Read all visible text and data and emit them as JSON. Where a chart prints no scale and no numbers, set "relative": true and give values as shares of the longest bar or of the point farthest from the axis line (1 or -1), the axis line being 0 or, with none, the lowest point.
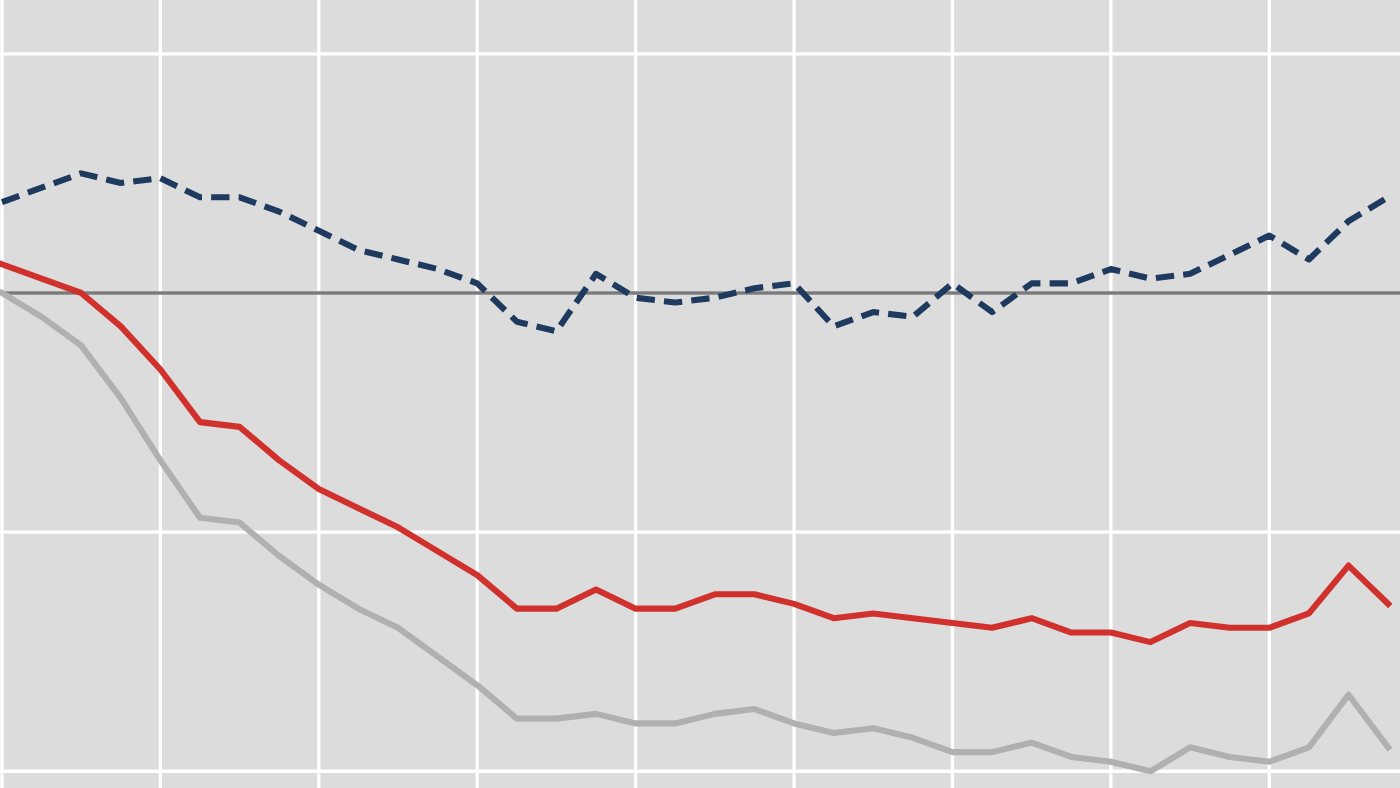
{
  "chart_data": {
    "type": "line",
    "relative": true,
    "grid": true,
    "legend": false,
    "categories": [
      null,
      null,
      null,
      null,
      null,
      null,
      null,
      null,
      null,
      null,
      null,
      null,
      null,
      null,
      null,
      null,
      null,
      null,
      null,
      null,
      null,
      null,
      null,
      null,
      null,
      null,
      null,
      null,
      null,
      null,
      null,
      null,
      null,
      null,
      null,
      null
    ],
    "series": [
      {
        "color": "#1f3a5f",
        "line_style": "dashed",
        "values": [
          0.19,
          0.22,
          0.25,
          0.23,
          0.24,
          0.2,
          0.2,
          0.17,
          0.13,
          0.09,
          0.07,
          0.05,
          0.02,
          -0.06,
          -0.08,
          0.04,
          -0.01,
          -0.02,
          -0.01,
          0.01,
          0.02,
          -0.07,
          -0.04,
          -0.05,
          0.02,
          -0.04,
          0.02,
          0.02,
          0.05,
          0.03,
          0.04,
          0.08,
          0.12,
          0.07,
          0.15,
          0.2
        ]
      },
      {
        "color": "#d0312d",
        "line_style": "solid",
        "values": [
          0.06,
          0.03,
          0.0,
          -0.07,
          -0.16,
          -0.27,
          -0.28,
          -0.35,
          -0.41,
          -0.45,
          -0.49,
          -0.54,
          -0.59,
          -0.66,
          -0.66,
          -0.62,
          -0.66,
          -0.66,
          -0.63,
          -0.63,
          -0.65,
          -0.68,
          -0.67,
          -0.68,
          -0.69,
          -0.7,
          -0.68,
          -0.71,
          -0.71,
          -0.73,
          -0.69,
          -0.7,
          -0.7,
          -0.67,
          -0.57,
          -0.65
        ]
      },
      {
        "color": "#b0b0b0",
        "line_style": "solid",
        "values": [
          0.0,
          -0.05,
          -0.11,
          -0.22,
          -0.35,
          -0.47,
          -0.48,
          -0.55,
          -0.61,
          -0.66,
          -0.7,
          -0.76,
          -0.82,
          -0.89,
          -0.89,
          -0.88,
          -0.9,
          -0.9,
          -0.88,
          -0.87,
          -0.9,
          -0.92,
          -0.91,
          -0.93,
          -0.96,
          -0.96,
          -0.94,
          -0.97,
          -0.98,
          -1.0,
          -0.95,
          -0.97,
          -0.98,
          -0.95,
          -0.84,
          -0.95
        ]
      }
    ]
  }
}
